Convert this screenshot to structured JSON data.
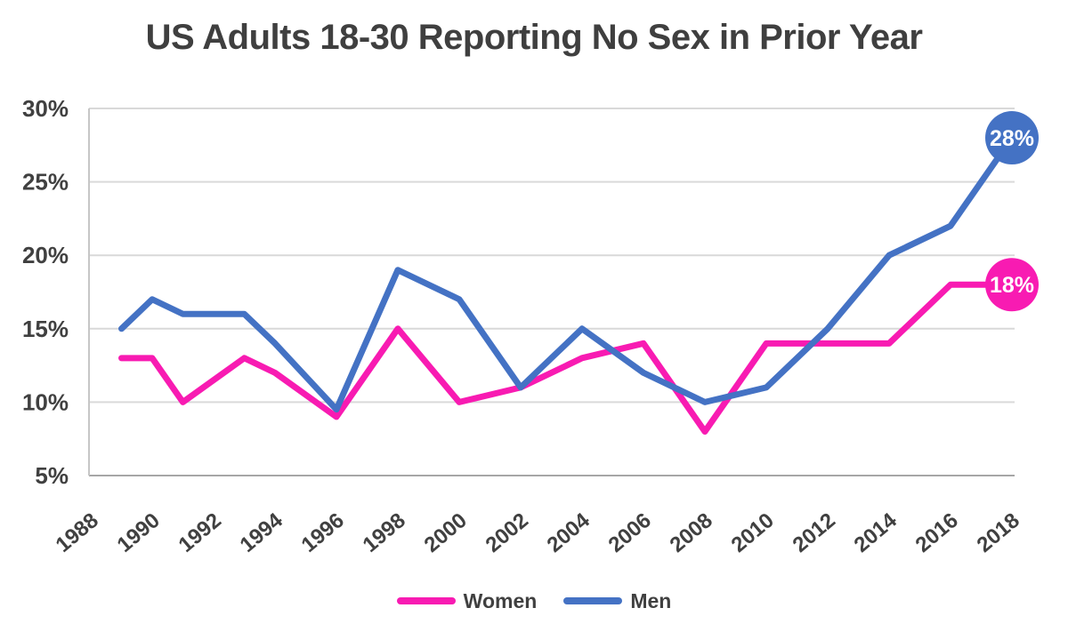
{
  "title": "US Adults 18-30 Reporting No Sex in Prior Year",
  "chart_data": {
    "type": "line",
    "title": "US Adults 18-30 Reporting No Sex in Prior Year",
    "xlabel": "",
    "ylabel": "",
    "x": [
      1989,
      1990,
      1991,
      1993,
      1994,
      1996,
      1998,
      2000,
      2002,
      2004,
      2006,
      2008,
      2010,
      2012,
      2014,
      2016,
      2018
    ],
    "series": [
      {
        "name": "Women",
        "color": "#F81BB2",
        "values": [
          13,
          13,
          10,
          13,
          12,
          9,
          15,
          10,
          11,
          13,
          14,
          8,
          14,
          14,
          14,
          18,
          18
        ],
        "end_label": "18%"
      },
      {
        "name": "Men",
        "color": "#4472C4",
        "values": [
          15,
          17,
          16,
          16,
          14,
          9.5,
          19,
          17,
          11,
          15,
          12,
          10,
          11,
          15,
          20,
          22,
          28
        ],
        "end_label": "28%"
      }
    ],
    "x_ticks": [
      1988,
      1990,
      1992,
      1994,
      1996,
      1998,
      2000,
      2002,
      2004,
      2006,
      2008,
      2010,
      2012,
      2014,
      2016,
      2018
    ],
    "y_ticks": [
      30,
      25,
      20,
      15,
      10,
      5
    ],
    "y_tick_suffix": "%",
    "xlim": [
      1988,
      2018
    ],
    "ylim": [
      5,
      30
    ],
    "grid": "horizontal",
    "legend_position": "bottom-center",
    "text_color": "#404040",
    "grid_color": "#D9D9D9",
    "axis_color": "#A6A6A6",
    "left_border_color": "#C6C6C6",
    "background_color": "#FFFFFF",
    "end_label_text_color": "#FFFFFF"
  }
}
